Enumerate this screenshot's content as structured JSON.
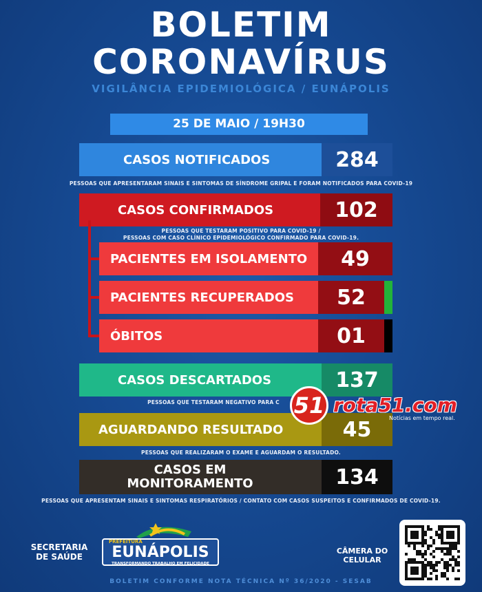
{
  "header": {
    "title_line1": "BOLETIM",
    "title_line2": "CORONAVÍRUS",
    "subtitle": "VIGILÂNCIA EPIDEMIOLÓGICA / EUNÁPOLIS"
  },
  "date": "25 DE MAIO / 19H30",
  "notificados": {
    "label": "CASOS NOTIFICADOS",
    "value": "284",
    "note": "PESSOAS QUE APRESENTARAM SINAIS E SINTOMAS DE SÍNDROME GRIPAL E FORAM NOTIFICADOS PARA COVID-19"
  },
  "confirmados": {
    "label": "CASOS CONFIRMADOS",
    "value": "102",
    "note_line1": "PESSOAS QUE TESTARAM POSITIVO PARA COVID-19 /",
    "note_line2": "PESSOAS COM CASO CLÍNICO EPIDEMIOLÓGICO CONFIRMADO PARA COVID-19."
  },
  "isolamento": {
    "label": "PACIENTES EM ISOLAMENTO",
    "value": "49"
  },
  "recuperados": {
    "label": "PACIENTES RECUPERADOS",
    "value": "52"
  },
  "obitos": {
    "label": "ÓBITOS",
    "value": "01"
  },
  "descartados": {
    "label": "CASOS DESCARTADOS",
    "value": "137",
    "note": "PESSOAS QUE TESTARAM NEGATIVO PARA C"
  },
  "aguardando": {
    "label": "AGUARDANDO RESULTADO",
    "value": "45",
    "note": "PESSOAS QUE REALIZARAM O EXAME E AGUARDAM O RESULTADO."
  },
  "monitoramento": {
    "label_line1": "CASOS EM",
    "label_line2": "MONITORAMENTO",
    "value": "134",
    "note": "PESSOAS QUE APRESENTAM SINAIS E SINTOMAS RESPIRATÓRIOS / CONTATO COM CASOS SUSPEITOS  E CONFIRMADOS DE COVID-19."
  },
  "watermark": {
    "number": "51",
    "site": "rota51.com",
    "tagline": "Notícias em tempo real."
  },
  "footer": {
    "secretaria_line1": "SECRETARIA",
    "secretaria_line2": "DE SAÚDE",
    "prefeitura": "PREFEITURA",
    "city": "EUNÁPOLIS",
    "slogan": "TRANSFORMANDO TRABALHO EM FELICIDADE",
    "camera_line1": "CÂMERA DO",
    "camera_line2": "CELULAR",
    "note": "BOLETIM CONFORME NOTA TÉCNICA Nº 36/2020 - SESAB"
  },
  "colors": {
    "notificados_label": "#2f86de",
    "notificados_value": "#1d4f99",
    "confirmados_label": "#cf1a21",
    "confirmados_value": "#8f0c12",
    "sub_label": "#ef3a3c",
    "sub_value": "#930e14",
    "descartados_label": "#1fb889",
    "descartados_value": "#168a66",
    "aguardando_label": "#a99812",
    "aguardando_value": "#7a6b08",
    "monitoramento_label": "#332d28",
    "monitoramento_value": "#0e0e0e"
  }
}
